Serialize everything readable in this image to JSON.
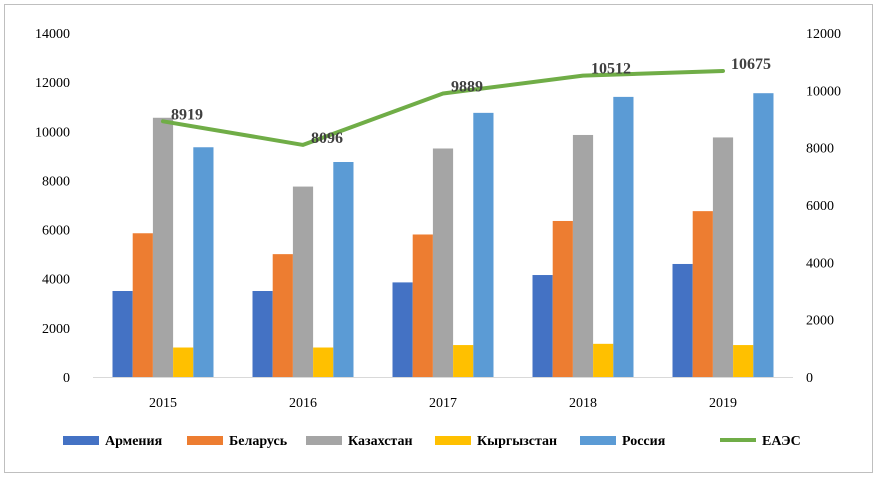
{
  "chart_data": {
    "type": "bar",
    "categories": [
      "2015",
      "2016",
      "2017",
      "2018",
      "2019"
    ],
    "series": [
      {
        "name": "Армения",
        "axis": "left",
        "type": "bar",
        "color": "#4472C4",
        "values": [
          3500,
          3500,
          3850,
          4150,
          4600
        ]
      },
      {
        "name": "Беларусь",
        "axis": "left",
        "type": "bar",
        "color": "#ED7D31",
        "values": [
          5850,
          5000,
          5800,
          6350,
          6750
        ]
      },
      {
        "name": "Казахстан",
        "axis": "left",
        "type": "bar",
        "color": "#A5A5A5",
        "values": [
          10550,
          7750,
          9300,
          9850,
          9750
        ]
      },
      {
        "name": "Кыргызстан",
        "axis": "left",
        "type": "bar",
        "color": "#FFC000",
        "values": [
          1200,
          1200,
          1300,
          1350,
          1300
        ]
      },
      {
        "name": "Россия",
        "axis": "left",
        "type": "bar",
        "color": "#5B9BD5",
        "values": [
          9350,
          8750,
          10750,
          11400,
          11550
        ]
      },
      {
        "name": "ЕАЭС",
        "axis": "right",
        "type": "line",
        "color": "#70AD47",
        "values": [
          8919,
          8096,
          9889,
          10512,
          10675
        ],
        "data_labels": [
          "8919",
          "8096",
          "9889",
          "10512",
          "10675"
        ]
      }
    ],
    "y_left": {
      "min": 0,
      "max": 14000,
      "step": 2000,
      "ticks": [
        "0",
        "2000",
        "4000",
        "6000",
        "8000",
        "10000",
        "12000",
        "14000"
      ]
    },
    "y_right": {
      "min": 0,
      "max": 12000,
      "step": 2000,
      "ticks": [
        "0",
        "2000",
        "4000",
        "6000",
        "8000",
        "10000",
        "12000"
      ]
    },
    "legend": {
      "position": "bottom"
    },
    "grid": false
  }
}
